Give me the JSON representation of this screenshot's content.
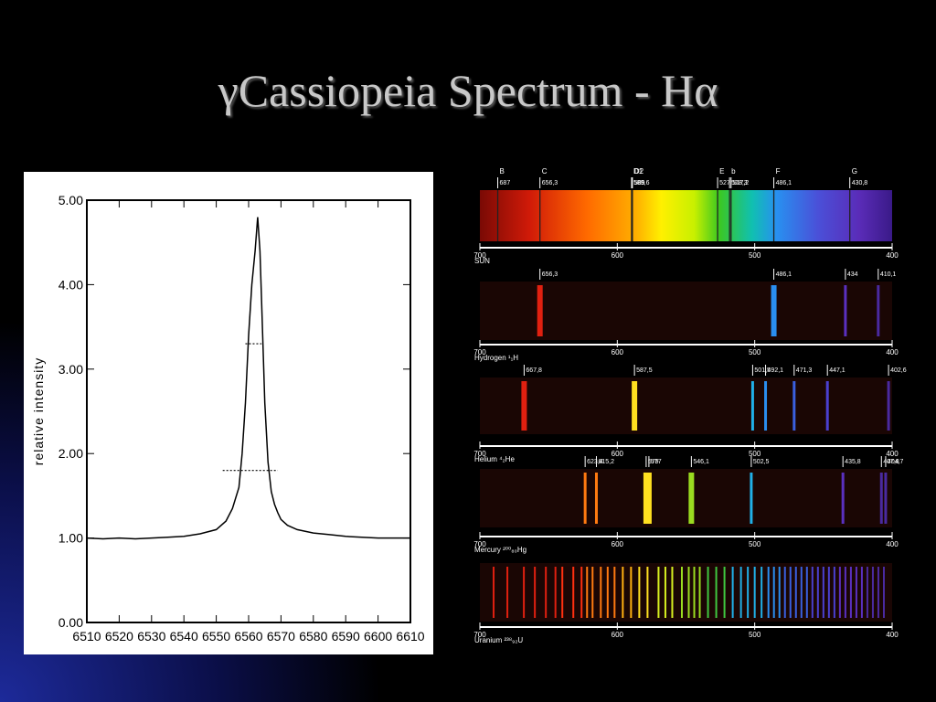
{
  "slide": {
    "title": "γCassiopeia Spectrum - Hα"
  },
  "chart_data": [
    {
      "type": "line",
      "title": "",
      "xlabel": "",
      "ylabel": "relative intensity",
      "xlim": [
        6510,
        6610
      ],
      "ylim": [
        0,
        5
      ],
      "grid": false,
      "x_ticks": [
        "6510",
        "6520",
        "6530",
        "6540",
        "6550",
        "6560",
        "6570",
        "6580",
        "6590",
        "6600",
        "6610"
      ],
      "y_ticks": [
        "0.00",
        "1.00",
        "2.00",
        "3.00",
        "4.00",
        "5.00"
      ],
      "series": [
        {
          "x": [
            6510,
            6515,
            6520,
            6525,
            6530,
            6535,
            6540,
            6545,
            6550,
            6553,
            6555,
            6557,
            6558,
            6559,
            6560,
            6561,
            6562,
            6562.8,
            6563.5,
            6564,
            6565,
            6566,
            6567,
            6568,
            6569,
            6570,
            6572,
            6575,
            6580,
            6585,
            6590,
            6595,
            6600,
            6605,
            6610
          ],
          "y": [
            1.0,
            0.99,
            1.0,
            0.99,
            1.0,
            1.01,
            1.02,
            1.05,
            1.1,
            1.2,
            1.35,
            1.6,
            2.0,
            2.6,
            3.4,
            4.0,
            4.4,
            4.8,
            4.4,
            3.8,
            2.6,
            1.9,
            1.55,
            1.4,
            1.3,
            1.22,
            1.15,
            1.1,
            1.06,
            1.04,
            1.02,
            1.01,
            1.0,
            1.0,
            1.0
          ]
        }
      ],
      "annotations": [
        {
          "type": "hline",
          "y": 3.3,
          "x_range": [
            6559,
            6564
          ]
        },
        {
          "type": "hline",
          "y": 1.8,
          "x_range": [
            6552,
            6569
          ]
        }
      ]
    },
    {
      "type": "spectrum-strips",
      "xlim": [
        700,
        400
      ],
      "axis_ticks": [
        "700",
        "600",
        "500",
        "400"
      ],
      "strips": [
        {
          "name": "SUN",
          "kind": "continuous-absorption",
          "line_labels": [
            {
              "letter": "B",
              "value": "687",
              "nm": 687
            },
            {
              "letter": "C",
              "value": "656,3",
              "nm": 656.3
            },
            {
              "letter": "D1",
              "value": "589,6",
              "nm": 589.6
            },
            {
              "letter": "D2",
              "value": "589",
              "nm": 589
            },
            {
              "letter": "E",
              "value": "527",
              "nm": 527
            },
            {
              "letter": "b",
              "value": "518,3",
              "nm": 518.3
            },
            {
              "letter": "",
              "value": "517,2",
              "nm": 517.2
            },
            {
              "letter": "F",
              "value": "486,1",
              "nm": 486.1
            },
            {
              "letter": "G",
              "value": "430,8",
              "nm": 430.8
            }
          ]
        },
        {
          "name": "Hydrogen ¹₁H",
          "kind": "emission",
          "labeled_lines": [
            {
              "value": "656,3",
              "nm": 656.3
            },
            {
              "value": "486,1",
              "nm": 486.1
            },
            {
              "value": "434",
              "nm": 434
            },
            {
              "value": "410,1",
              "nm": 410.1
            }
          ]
        },
        {
          "name": "Helium ⁴₂He",
          "kind": "emission",
          "labeled_lines": [
            {
              "value": "667,8",
              "nm": 667.8
            },
            {
              "value": "587,5",
              "nm": 587.5
            },
            {
              "value": "501,5",
              "nm": 501.5
            },
            {
              "value": "492,1",
              "nm": 492.1
            },
            {
              "value": "471,3",
              "nm": 471.3
            },
            {
              "value": "447,1",
              "nm": 447.1
            },
            {
              "value": "402,6",
              "nm": 402.6
            }
          ]
        },
        {
          "name": "Mercury ²⁰⁰₈₀Hg",
          "kind": "emission",
          "labeled_lines": [
            {
              "value": "623,4",
              "nm": 623.4
            },
            {
              "value": "615,2",
              "nm": 615.2
            },
            {
              "value": "579",
              "nm": 579
            },
            {
              "value": "577",
              "nm": 577
            },
            {
              "value": "546,1",
              "nm": 546.1
            },
            {
              "value": "502,5",
              "nm": 502.5
            },
            {
              "value": "435,8",
              "nm": 435.8
            },
            {
              "value": "407,8",
              "nm": 407.8
            },
            {
              "value": "404,7",
              "nm": 404.7
            }
          ]
        },
        {
          "name": "Uranium ²³⁸₉₂U",
          "kind": "emission-dense",
          "unlabeled_lines_nm": [
            690,
            680,
            668,
            660,
            652,
            645,
            640,
            632,
            626,
            622,
            618,
            612,
            607,
            602,
            596,
            590,
            584,
            578,
            570,
            565,
            560,
            553,
            548,
            544,
            540,
            534,
            528,
            522,
            516,
            510,
            505,
            500,
            495,
            490,
            486,
            482,
            478,
            474,
            470,
            466,
            462,
            458,
            454,
            450,
            446,
            442,
            438,
            434,
            430,
            426,
            422,
            418,
            414,
            410,
            406
          ]
        }
      ]
    }
  ]
}
